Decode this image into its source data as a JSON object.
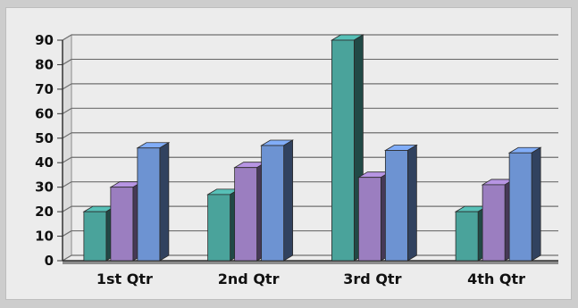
{
  "chart_data": {
    "type": "bar",
    "categories": [
      "1st Qtr",
      "2nd Qtr",
      "3rd Qtr",
      "4th Qtr"
    ],
    "series": [
      {
        "values": [
          20,
          27,
          90,
          20
        ],
        "color": "#4aa39b"
      },
      {
        "values": [
          30,
          38,
          34,
          31
        ],
        "color": "#9b7ec0"
      },
      {
        "values": [
          46,
          47,
          45,
          44
        ],
        "color": "#6d93d2"
      }
    ],
    "ylim": [
      0,
      90
    ],
    "yticks": [
      0,
      10,
      20,
      30,
      40,
      50,
      60,
      70,
      80,
      90
    ],
    "grid": true,
    "style": "3d-bar",
    "title": "",
    "xlabel": "",
    "ylabel": ""
  }
}
